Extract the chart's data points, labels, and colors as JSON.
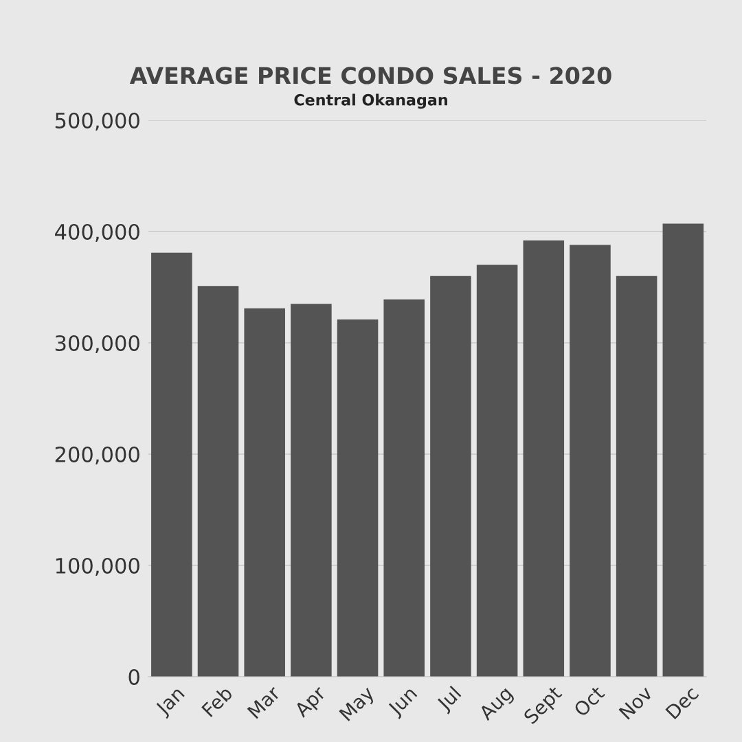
{
  "chart_data": {
    "type": "bar",
    "title": "AVERAGE PRICE CONDO SALES - 2020",
    "subtitle": "Central Okanagan",
    "categories": [
      "Jan",
      "Feb",
      "Mar",
      "Apr",
      "May",
      "Jun",
      "Jul",
      "Aug",
      "Sept",
      "Oct",
      "Nov",
      "Dec"
    ],
    "values": [
      381000,
      351000,
      331000,
      335000,
      321000,
      339000,
      360000,
      370000,
      392000,
      388000,
      360000,
      407000
    ],
    "color": "#545454",
    "ylim": [
      0,
      500000
    ],
    "yticks": [
      {
        "value": 0,
        "label": "0"
      },
      {
        "value": 100000,
        "label": "100,000"
      },
      {
        "value": 200000,
        "label": "200,000"
      },
      {
        "value": 300000,
        "label": "300,000"
      },
      {
        "value": 400000,
        "label": "400,000"
      },
      {
        "value": 500000,
        "label": "500,000"
      }
    ],
    "grid": "y"
  }
}
